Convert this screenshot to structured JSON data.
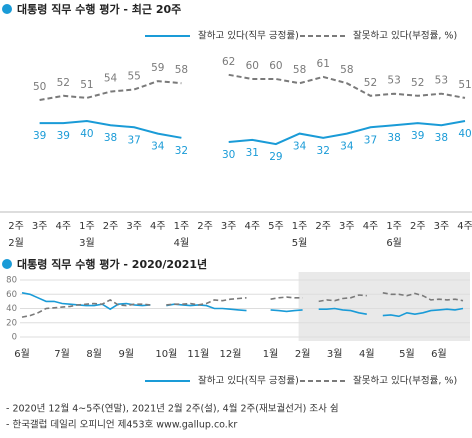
{
  "chart_data": [
    {
      "type": "line",
      "title": "대통령 직무 수행 평가 - 최근 20주",
      "categories": [
        "2주",
        "3주",
        "4주",
        "1주",
        "2주",
        "3주",
        "4주",
        "1주",
        "2주",
        "3주",
        "4주",
        "5주",
        "1주",
        "2주",
        "3주",
        "4주",
        "1주",
        "2주",
        "3주",
        "4주"
      ],
      "months": [
        "2월",
        null,
        null,
        "3월",
        null,
        null,
        null,
        "4월",
        null,
        null,
        null,
        null,
        "5월",
        null,
        null,
        null,
        "6월",
        null,
        null,
        null
      ],
      "ylim": [
        20,
        70
      ],
      "show_values": true,
      "series": [
        {
          "name": "잘하고 있다(직무 긍정률)",
          "color": "#1a9bd7",
          "style": "solid",
          "values": [
            null,
            39,
            39,
            40,
            38,
            37,
            34,
            32,
            null,
            30,
            31,
            29,
            34,
            32,
            34,
            37,
            38,
            39,
            38,
            40
          ]
        },
        {
          "name": "잘못하고 있다(부정률, %)",
          "color": "#7a7a7a",
          "style": "dashed",
          "values": [
            null,
            50,
            52,
            51,
            54,
            55,
            59,
            58,
            null,
            62,
            60,
            60,
            58,
            61,
            58,
            52,
            53,
            52,
            53,
            51
          ]
        }
      ]
    },
    {
      "type": "line",
      "title": "대통령 직무 수행 평가 - 2020/2021년",
      "categories": [
        "6월",
        null,
        null,
        null,
        null,
        "7월",
        null,
        null,
        null,
        "8월",
        null,
        null,
        null,
        "9월",
        null,
        null,
        null,
        null,
        "10월",
        null,
        null,
        null,
        "11월",
        null,
        null,
        null,
        "12월",
        null,
        null,
        null,
        null,
        "1월",
        null,
        null,
        null,
        "2월",
        null,
        null,
        null,
        "3월",
        null,
        null,
        null,
        "4월",
        null,
        null,
        null,
        null,
        "5월",
        null,
        null,
        null,
        "6월",
        null,
        null,
        null
      ],
      "ylim": [
        0,
        80
      ],
      "yticks": [
        0,
        20,
        40,
        60,
        80
      ],
      "grid": true,
      "show_values": false,
      "series": [
        {
          "name": "잘하고 있다(직무 긍정률)",
          "color": "#1a9bd7",
          "style": "solid",
          "values": [
            62,
            60,
            55,
            50,
            50,
            47,
            46,
            45,
            44,
            44,
            46,
            39,
            46,
            47,
            45,
            44,
            45,
            null,
            44,
            46,
            45,
            44,
            45,
            44,
            40,
            40,
            39,
            38,
            37,
            null,
            null,
            38,
            37,
            36,
            37,
            38,
            null,
            39,
            39,
            40,
            38,
            37,
            34,
            32,
            null,
            30,
            31,
            29,
            34,
            32,
            34,
            37,
            38,
            39,
            38,
            40
          ]
        },
        {
          "name": "잘못하고 있다(부정률, %)",
          "color": "#7a7a7a",
          "style": "dashed",
          "values": [
            28,
            30,
            34,
            40,
            41,
            42,
            43,
            45,
            46,
            47,
            46,
            52,
            45,
            44,
            46,
            46,
            45,
            null,
            45,
            46,
            46,
            47,
            45,
            47,
            52,
            51,
            53,
            54,
            55,
            null,
            null,
            53,
            55,
            56,
            55,
            55,
            null,
            50,
            52,
            51,
            54,
            55,
            59,
            58,
            null,
            62,
            60,
            60,
            58,
            61,
            58,
            52,
            53,
            52,
            53,
            51
          ]
        }
      ]
    }
  ],
  "notes": [
    "- 2020년 12월 4~5주(연말), 2021년 2월 2주(설), 4월 2주(재보궐선거) 조사 쉼",
    "- 한국갤럽 데일리 오피니언 제453호 www.gallup.co.kr"
  ]
}
